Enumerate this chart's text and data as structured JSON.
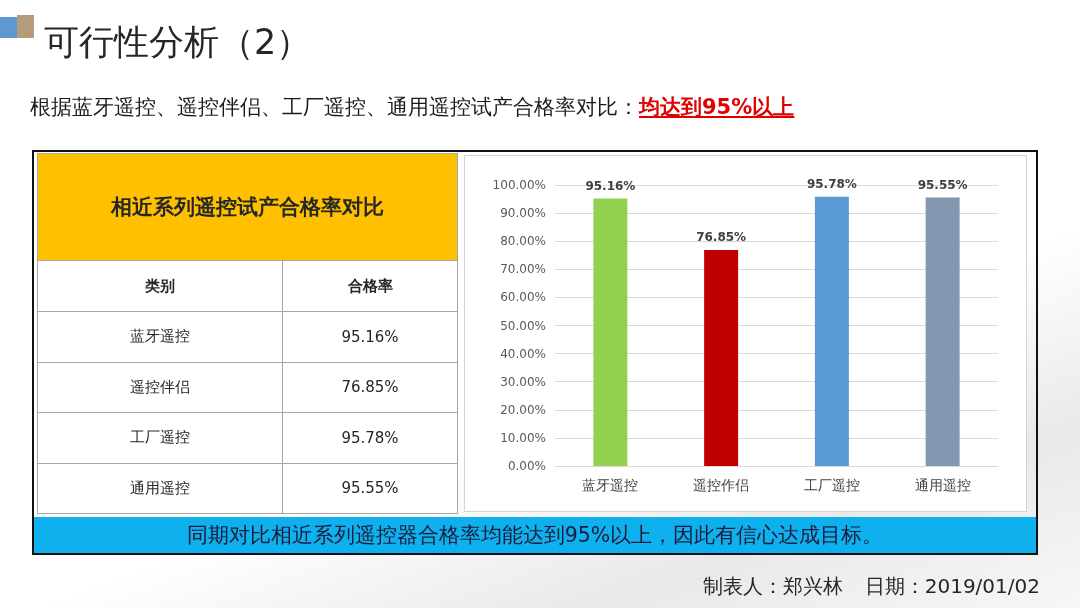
{
  "chart_data": [
    {
      "type": "other",
      "title": "可行性分析（2）",
      "subtitle": "根据蓝牙遥控、遥控伴侣、工厂遥控、通用遥控试产合格率对比：",
      "annotations": [
        "均达到95%以上",
        "相近系列遥控试产合格率对比",
        "类别",
        "合格率",
        "蓝牙遥控",
        "95.16%",
        "遥控伴侣",
        "76.85%",
        "工厂遥控",
        "95.78%",
        "通用遥控",
        "95.55%",
        "同期对比相近系列遥控器合格率均能达到95%以上，因此有信心达成目标。",
        "制表人：郑兴林",
        "日期：2019/01/02"
      ]
    },
    {
      "type": "bar",
      "categories": [
        "蓝牙遥控",
        "遥控作侣",
        "工厂遥控",
        "通用遥控"
      ],
      "values": [
        95.16,
        76.85,
        95.78,
        95.55
      ],
      "colors": [
        "#92d050",
        "#c00000",
        "#5b9bd5",
        "#8497b0"
      ],
      "value_labels": [
        "95.16%",
        "76.85%",
        "95.78%",
        "95.55%"
      ],
      "ylim": [
        0,
        100
      ],
      "yticks": [
        {
          "value": 0,
          "label": "0.00%"
        },
        {
          "value": 10,
          "label": "10.00%"
        },
        {
          "value": 20,
          "label": "20.00%"
        },
        {
          "value": 30,
          "label": "30.00%"
        },
        {
          "value": 40,
          "label": "40.00%"
        },
        {
          "value": 50,
          "label": "50.00%"
        },
        {
          "value": 60,
          "label": "60.00%"
        },
        {
          "value": 70,
          "label": "70.00%"
        },
        {
          "value": 80,
          "label": "80.00%"
        },
        {
          "value": 90,
          "label": "90.00%"
        },
        {
          "value": 100,
          "label": "100.00%"
        }
      ],
      "grid": "y"
    }
  ]
}
